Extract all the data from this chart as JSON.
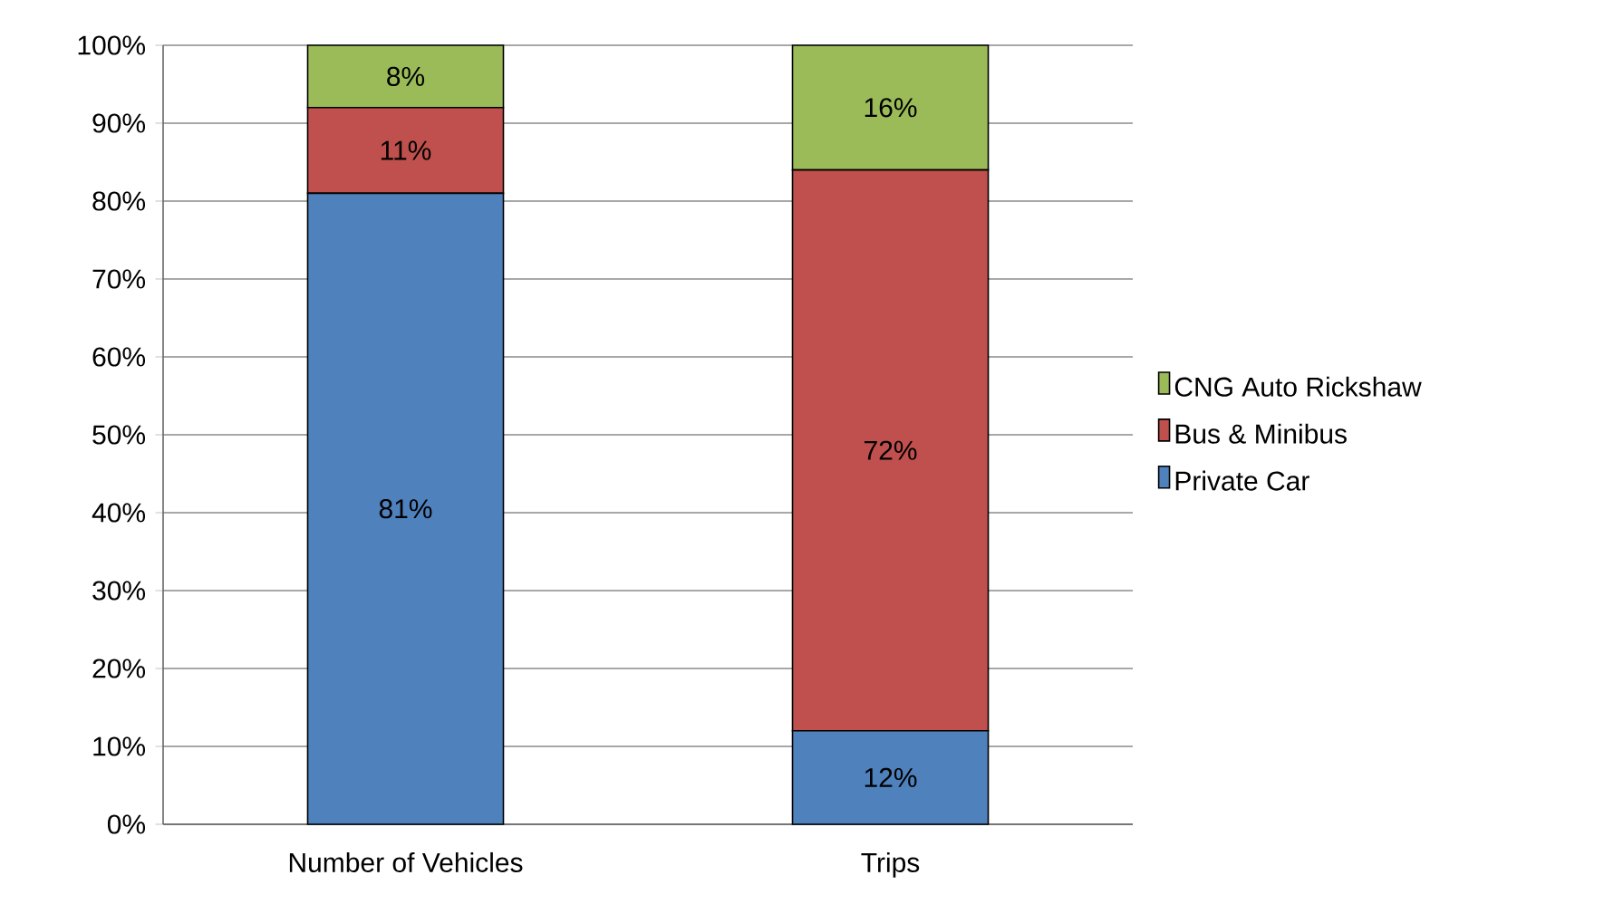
{
  "chart_data": {
    "type": "bar",
    "stacked": true,
    "categories": [
      "Number of Vehicles",
      "Trips"
    ],
    "series": [
      {
        "name": "Private Car",
        "color": "#4f81bd",
        "values": [
          81,
          12
        ],
        "value_labels": [
          "81%",
          "12%"
        ]
      },
      {
        "name": "Bus & Minibus",
        "color": "#c0504d",
        "values": [
          11,
          72
        ],
        "value_labels": [
          "11%",
          "72%"
        ]
      },
      {
        "name": "CNG Auto Rickshaw",
        "color": "#9bbb59",
        "values": [
          8,
          16
        ],
        "value_labels": [
          "8%",
          "16%"
        ]
      }
    ],
    "ylim": [
      0,
      100
    ],
    "yticks": [
      {
        "value": 0,
        "label": "0%"
      },
      {
        "value": 10,
        "label": "10%"
      },
      {
        "value": 20,
        "label": "20%"
      },
      {
        "value": 30,
        "label": "30%"
      },
      {
        "value": 40,
        "label": "40%"
      },
      {
        "value": 50,
        "label": "50%"
      },
      {
        "value": 60,
        "label": "60%"
      },
      {
        "value": 70,
        "label": "70%"
      },
      {
        "value": 80,
        "label": "80%"
      },
      {
        "value": 90,
        "label": "90%"
      },
      {
        "value": 100,
        "label": "100%"
      }
    ],
    "grid": "y",
    "legend": "right"
  }
}
